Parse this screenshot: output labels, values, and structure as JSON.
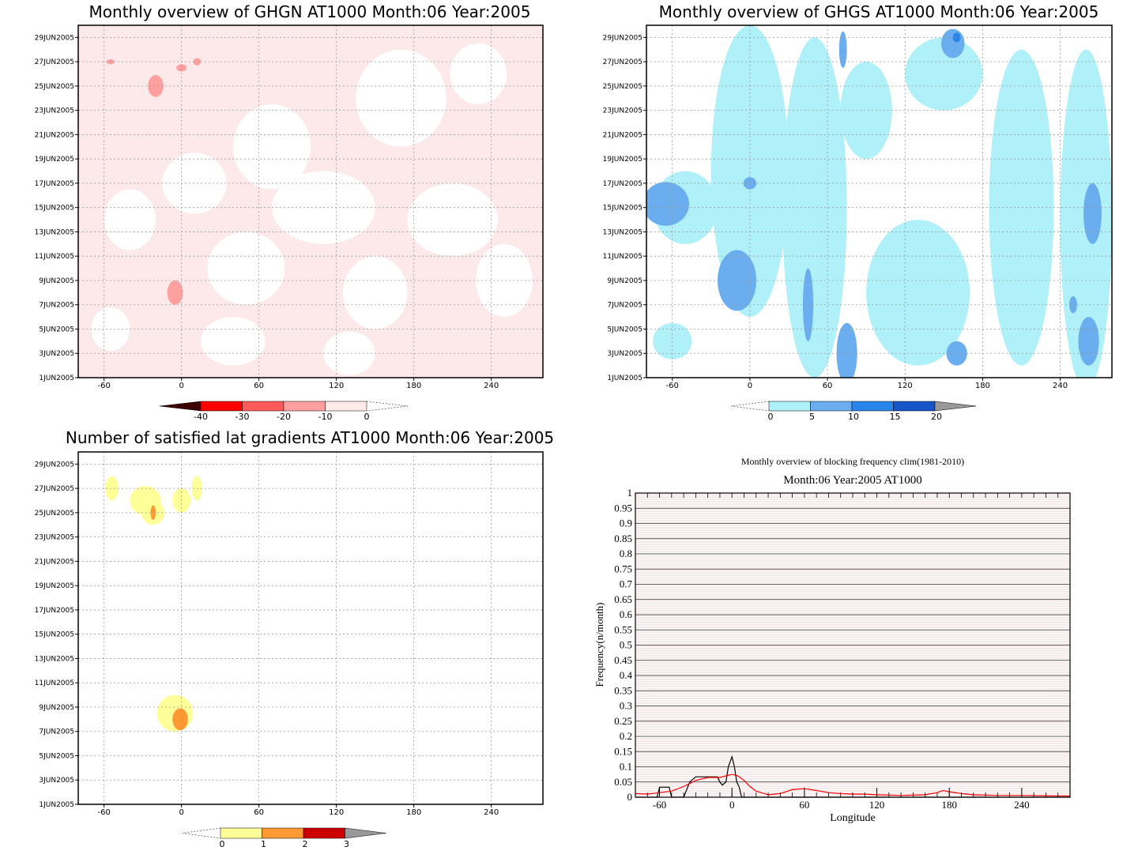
{
  "chart_data": [
    {
      "type": "heatmap",
      "title": "Monthly overview of GHGN AT1000 Month:06 Year:2005",
      "x_ticks": [
        "-60",
        "0",
        "60",
        "120",
        "180",
        "240"
      ],
      "x_tick_values": [
        -60,
        0,
        60,
        120,
        180,
        240
      ],
      "xlim": [
        -80,
        280
      ],
      "y_ticks": [
        "1JUN2005",
        "3JUN2005",
        "5JUN2005",
        "7JUN2005",
        "9JUN2005",
        "11JUN2005",
        "13JUN2005",
        "15JUN2005",
        "17JUN2005",
        "19JUN2005",
        "21JUN2005",
        "23JUN2005",
        "25JUN2005",
        "27JUN2005",
        "29JUN2005"
      ],
      "y_tick_values": [
        1,
        3,
        5,
        7,
        9,
        11,
        13,
        15,
        17,
        19,
        21,
        23,
        25,
        27,
        29
      ],
      "ylim": [
        1,
        30
      ],
      "grid": true,
      "colorbar": {
        "labels": [
          "-40",
          "-30",
          "-20",
          "-10",
          "0"
        ],
        "colors": [
          "#3d0000",
          "#ff0000",
          "#ff5a5a",
          "#ffa0a0",
          "#ffeaea"
        ]
      },
      "background_color": "#fde9e9",
      "blobs": [
        {
          "lon": 70,
          "day": 20,
          "rlon": 30,
          "rday": 3.5,
          "level": "#ffffff"
        },
        {
          "lon": 170,
          "day": 24,
          "rlon": 35,
          "rday": 4,
          "level": "#ffffff"
        },
        {
          "lon": 230,
          "day": 26,
          "rlon": 22,
          "rday": 2.5,
          "level": "#ffffff"
        },
        {
          "lon": 10,
          "day": 17,
          "rlon": 25,
          "rday": 2.5,
          "level": "#ffffff"
        },
        {
          "lon": 110,
          "day": 15,
          "rlon": 40,
          "rday": 3,
          "level": "#ffffff"
        },
        {
          "lon": 210,
          "day": 14,
          "rlon": 35,
          "rday": 3,
          "level": "#ffffff"
        },
        {
          "lon": -40,
          "day": 14,
          "rlon": 20,
          "rday": 2.5,
          "level": "#ffffff"
        },
        {
          "lon": 50,
          "day": 10,
          "rlon": 30,
          "rday": 3,
          "level": "#ffffff"
        },
        {
          "lon": 150,
          "day": 8,
          "rlon": 25,
          "rday": 3,
          "level": "#ffffff"
        },
        {
          "lon": 250,
          "day": 9,
          "rlon": 22,
          "rday": 3,
          "level": "#ffffff"
        },
        {
          "lon": 40,
          "day": 4,
          "rlon": 25,
          "rday": 2,
          "level": "#ffffff"
        },
        {
          "lon": 130,
          "day": 3,
          "rlon": 20,
          "rday": 1.8,
          "level": "#ffffff"
        },
        {
          "lon": -55,
          "day": 5,
          "rlon": 15,
          "rday": 1.8,
          "level": "#ffffff"
        },
        {
          "lon": -20,
          "day": 25,
          "rlon": 6,
          "rday": 0.9,
          "level": "#ffa0a0"
        },
        {
          "lon": -5,
          "day": 8,
          "rlon": 6,
          "rday": 1,
          "level": "#ffa0a0"
        },
        {
          "lon": -55,
          "day": 27,
          "rlon": 3,
          "rday": 0.2,
          "level": "#ffa0a0"
        },
        {
          "lon": 12,
          "day": 27,
          "rlon": 3,
          "rday": 0.3,
          "level": "#ffa0a0"
        },
        {
          "lon": 0,
          "day": 26.5,
          "rlon": 4,
          "rday": 0.3,
          "level": "#ffa0a0"
        }
      ]
    },
    {
      "type": "heatmap",
      "title": "Monthly overview of GHGS AT1000 Month:06 Year:2005",
      "x_ticks": [
        "-60",
        "0",
        "60",
        "120",
        "180",
        "240"
      ],
      "x_tick_values": [
        -60,
        0,
        60,
        120,
        180,
        240
      ],
      "xlim": [
        -80,
        280
      ],
      "y_ticks": [
        "1JUN2005",
        "3JUN2005",
        "5JUN2005",
        "7JUN2005",
        "9JUN2005",
        "11JUN2005",
        "13JUN2005",
        "15JUN2005",
        "17JUN2005",
        "19JUN2005",
        "21JUN2005",
        "23JUN2005",
        "25JUN2005",
        "27JUN2005",
        "29JUN2005"
      ],
      "y_tick_values": [
        1,
        3,
        5,
        7,
        9,
        11,
        13,
        15,
        17,
        19,
        21,
        23,
        25,
        27,
        29
      ],
      "ylim": [
        1,
        30
      ],
      "grid": true,
      "colorbar": {
        "labels": [
          "0",
          "5",
          "10",
          "15",
          "20"
        ],
        "colors": [
          "#b0f0f8",
          "#6aaef0",
          "#2a85ea",
          "#1555c8",
          "#999999"
        ]
      },
      "background_color": "#ffffff",
      "blobs": [
        {
          "lon": 0,
          "day": 18,
          "rlon": 30,
          "rday": 12,
          "level": "#b0f0f8"
        },
        {
          "lon": 50,
          "day": 15,
          "rlon": 25,
          "rday": 14,
          "level": "#b0f0f8"
        },
        {
          "lon": 210,
          "day": 15,
          "rlon": 25,
          "rday": 13,
          "level": "#b0f0f8"
        },
        {
          "lon": 260,
          "day": 14,
          "rlon": 20,
          "rday": 14,
          "level": "#b0f0f8"
        },
        {
          "lon": 130,
          "day": 8,
          "rlon": 40,
          "rday": 6,
          "level": "#b0f0f8"
        },
        {
          "lon": -50,
          "day": 15,
          "rlon": 25,
          "rday": 3,
          "level": "#b0f0f8"
        },
        {
          "lon": 150,
          "day": 26,
          "rlon": 30,
          "rday": 3,
          "level": "#b0f0f8"
        },
        {
          "lon": 90,
          "day": 23,
          "rlon": 20,
          "rday": 4,
          "level": "#b0f0f8"
        },
        {
          "lon": -60,
          "day": 4,
          "rlon": 15,
          "rday": 1.5,
          "level": "#b0f0f8"
        },
        {
          "lon": -65,
          "day": 15.3,
          "rlon": 18,
          "rday": 1.8,
          "level": "#6aaef0"
        },
        {
          "lon": -10,
          "day": 9,
          "rlon": 15,
          "rday": 2.5,
          "level": "#6aaef0"
        },
        {
          "lon": 45,
          "day": 7,
          "rlon": 4,
          "rday": 3,
          "level": "#6aaef0"
        },
        {
          "lon": 75,
          "day": 3,
          "rlon": 8,
          "rday": 2.5,
          "level": "#6aaef0"
        },
        {
          "lon": 160,
          "day": 3,
          "rlon": 8,
          "rday": 1,
          "level": "#6aaef0"
        },
        {
          "lon": 265,
          "day": 14.5,
          "rlon": 7,
          "rday": 2.5,
          "level": "#6aaef0"
        },
        {
          "lon": 262,
          "day": 4,
          "rlon": 8,
          "rday": 2,
          "level": "#6aaef0"
        },
        {
          "lon": 250,
          "day": 7,
          "rlon": 3,
          "rday": 0.7,
          "level": "#6aaef0"
        },
        {
          "lon": 157,
          "day": 28.5,
          "rlon": 9,
          "rday": 1.2,
          "level": "#6aaef0"
        },
        {
          "lon": 72,
          "day": 28,
          "rlon": 3,
          "rday": 1.5,
          "level": "#6aaef0"
        },
        {
          "lon": 160,
          "day": 29,
          "rlon": 3,
          "rday": 0.4,
          "level": "#2a85ea"
        },
        {
          "lon": 0,
          "day": 17,
          "rlon": 5,
          "rday": 0.5,
          "level": "#6aaef0"
        }
      ]
    },
    {
      "type": "heatmap",
      "title": "Number of satisfied lat gradients AT1000 Month:06 Year:2005",
      "x_ticks": [
        "-60",
        "0",
        "60",
        "120",
        "180",
        "240"
      ],
      "x_tick_values": [
        -60,
        0,
        60,
        120,
        180,
        240
      ],
      "xlim": [
        -80,
        280
      ],
      "y_ticks": [
        "1JUN2005",
        "3JUN2005",
        "5JUN2005",
        "7JUN2005",
        "9JUN2005",
        "11JUN2005",
        "13JUN2005",
        "15JUN2005",
        "17JUN2005",
        "19JUN2005",
        "21JUN2005",
        "23JUN2005",
        "25JUN2005",
        "27JUN2005",
        "29JUN2005"
      ],
      "y_tick_values": [
        1,
        3,
        5,
        7,
        9,
        11,
        13,
        15,
        17,
        19,
        21,
        23,
        25,
        27,
        29
      ],
      "ylim": [
        1,
        30
      ],
      "grid": true,
      "colorbar": {
        "labels": [
          "0",
          "1",
          "2",
          "3"
        ],
        "colors": [
          "#ffff99",
          "#ff9933",
          "#cc0000",
          "#999999"
        ]
      },
      "background_color": "#ffffff",
      "blobs": [
        {
          "lon": -54,
          "day": 27,
          "rlon": 5,
          "rday": 1,
          "level": "#ffff99"
        },
        {
          "lon": -28,
          "day": 26,
          "rlon": 12,
          "rday": 1.2,
          "level": "#ffff99"
        },
        {
          "lon": -22,
          "day": 25,
          "rlon": 9,
          "rday": 1,
          "level": "#ffff99"
        },
        {
          "lon": 0,
          "day": 26,
          "rlon": 7,
          "rday": 1,
          "level": "#ffff99"
        },
        {
          "lon": 12,
          "day": 27,
          "rlon": 4,
          "rday": 1,
          "level": "#ffff99"
        },
        {
          "lon": -22,
          "day": 25,
          "rlon": 2,
          "rday": 0.6,
          "level": "#ff9933"
        },
        {
          "lon": -5,
          "day": 8.5,
          "rlon": 14,
          "rday": 1.5,
          "level": "#ffff99"
        },
        {
          "lon": -1,
          "day": 8,
          "rlon": 6,
          "rday": 0.9,
          "level": "#ff9933"
        }
      ]
    },
    {
      "type": "line",
      "title": "Monthly overview of blocking frequency clim(1981-2010)",
      "subtitle": "Month:06 Year:2005  AT1000",
      "xlabel": "Longitude",
      "ylabel": "Frequency(n/month)",
      "xlim": [
        -80,
        280
      ],
      "ylim": [
        0,
        1
      ],
      "x_ticks": [
        "-60",
        "0",
        "60",
        "120",
        "180",
        "240"
      ],
      "x_tick_values": [
        -60,
        0,
        60,
        120,
        180,
        240
      ],
      "y_ticks": [
        "0",
        "0.05",
        "0.1",
        "0.15",
        "0.2",
        "0.25",
        "0.3",
        "0.35",
        "0.4",
        "0.45",
        "0.5",
        "0.55",
        "0.6",
        "0.65",
        "0.7",
        "0.75",
        "0.8",
        "0.85",
        "0.9",
        "0.95",
        "1"
      ],
      "grid": true,
      "series": [
        {
          "color": "#000000",
          "x": [
            -80,
            -62,
            -60,
            -55,
            -52,
            -50,
            -40,
            -35,
            -30,
            -25,
            -20,
            -15,
            -12,
            -10,
            -8,
            -5,
            -3,
            0,
            2,
            4,
            6,
            8,
            10,
            20,
            60,
            120,
            180,
            240,
            280
          ],
          "y": [
            0.0,
            0.0,
            0.033,
            0.033,
            0.033,
            0.0,
            0.0,
            0.05,
            0.067,
            0.067,
            0.067,
            0.067,
            0.067,
            0.05,
            0.04,
            0.05,
            0.1,
            0.133,
            0.1,
            0.05,
            0.033,
            0.0,
            0.0,
            0.0,
            0.0,
            0.0,
            0.0,
            0.0,
            0.0
          ]
        },
        {
          "color": "#ff0000",
          "x": [
            -80,
            -70,
            -60,
            -50,
            -40,
            -30,
            -20,
            -10,
            -5,
            0,
            5,
            10,
            15,
            20,
            30,
            40,
            50,
            60,
            70,
            80,
            90,
            100,
            110,
            120,
            140,
            160,
            170,
            175,
            180,
            190,
            200,
            220,
            240,
            260,
            280
          ],
          "y": [
            0.012,
            0.01,
            0.015,
            0.02,
            0.035,
            0.055,
            0.065,
            0.065,
            0.07,
            0.075,
            0.07,
            0.055,
            0.035,
            0.02,
            0.008,
            0.012,
            0.025,
            0.028,
            0.022,
            0.015,
            0.012,
            0.01,
            0.01,
            0.008,
            0.006,
            0.008,
            0.015,
            0.022,
            0.018,
            0.012,
            0.008,
            0.006,
            0.006,
            0.005,
            0.004
          ]
        }
      ]
    }
  ]
}
